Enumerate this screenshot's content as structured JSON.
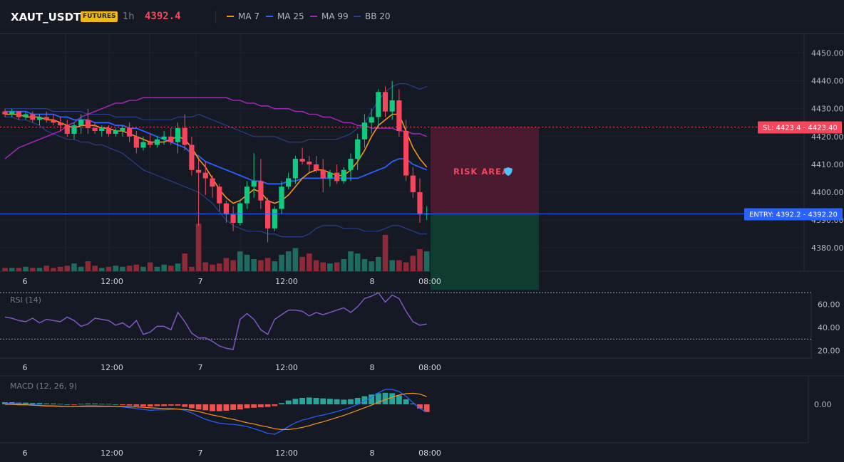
{
  "header": {
    "symbol": "XAUT_USDT",
    "badge": "FUTURES",
    "timeframe": "1h",
    "last_price": "4392.4",
    "legend": [
      {
        "label": "MA 7",
        "color": "#f7931a"
      },
      {
        "label": "MA 25",
        "color": "#2962ff"
      },
      {
        "label": "MA 99",
        "color": "#9c27b0"
      },
      {
        "label": "BB 20",
        "color": "#2a3f8a"
      }
    ]
  },
  "price_axis": [
    "4450.00",
    "4440.00",
    "4430.00",
    "4420.00",
    "4410.00",
    "4400.00",
    "4390.00",
    "4380.00"
  ],
  "time_axis": [
    "6",
    "12:00",
    "7",
    "12:00",
    "8",
    "08:00"
  ],
  "sl_label": "SL: 4423.4 - 4423.40",
  "entry_label": "ENTRY: 4392.2 - 4392.20",
  "risk_area_label": "RISK AREA",
  "rsi": {
    "title": "RSI (14)",
    "axis": [
      "60.00",
      "40.00",
      "20.00"
    ]
  },
  "macd": {
    "title": "MACD (12, 26, 9)",
    "axis": [
      "0.00"
    ]
  },
  "colors": {
    "bull": "#0ecb81",
    "bear": "#f6465d",
    "vol_bull": "#1e6b5f",
    "vol_bear": "#8e2a37",
    "rsi_line": "#7e57c2",
    "macd_line": "#2962ff",
    "signal_line": "#f7931a"
  },
  "chart_data": [
    {
      "type": "candlestick",
      "title": "",
      "ylim": [
        4371,
        4452
      ],
      "ohlc": [
        [
          4429,
          4430,
          4427,
          4428
        ],
        [
          4428,
          4430,
          4427,
          4429
        ],
        [
          4429,
          4429,
          4426,
          4427
        ],
        [
          4427,
          4429,
          4426,
          4428
        ],
        [
          4428,
          4429,
          4425,
          4426
        ],
        [
          4426,
          4428,
          4424,
          4427
        ],
        [
          4427,
          4429,
          4425,
          4426
        ],
        [
          4426,
          4428,
          4424,
          4425
        ],
        [
          4425,
          4427,
          4422,
          4424
        ],
        [
          4424,
          4426,
          4420,
          4421
        ],
        [
          4421,
          4425,
          4419,
          4424
        ],
        [
          4424,
          4428,
          4421,
          4426
        ],
        [
          4426,
          4430,
          4421,
          4423
        ],
        [
          4423,
          4425,
          4421,
          4422
        ],
        [
          4422,
          4424,
          4420,
          4423
        ],
        [
          4423,
          4424,
          4420,
          4421
        ],
        [
          4421,
          4423,
          4420,
          4422
        ],
        [
          4422,
          4424,
          4420,
          4423
        ],
        [
          4423,
          4425,
          4418,
          4420
        ],
        [
          4420,
          4422,
          4414,
          4416
        ],
        [
          4416,
          4420,
          4415,
          4418
        ],
        [
          4418,
          4421,
          4416,
          4417
        ],
        [
          4417,
          4420,
          4416,
          4419
        ],
        [
          4419,
          4422,
          4417,
          4420
        ],
        [
          4420,
          4423,
          4417,
          4418
        ],
        [
          4418,
          4425,
          4414,
          4423
        ],
        [
          4423,
          4428,
          4415,
          4417
        ],
        [
          4417,
          4420,
          4406,
          4408
        ],
        [
          4408,
          4412,
          4388,
          4407
        ],
        [
          4407,
          4411,
          4399,
          4405
        ],
        [
          4405,
          4406,
          4398,
          4402
        ],
        [
          4402,
          4403,
          4393,
          4396
        ],
        [
          4396,
          4397,
          4389,
          4392
        ],
        [
          4392,
          4395,
          4386,
          4389
        ],
        [
          4389,
          4397,
          4388,
          4396
        ],
        [
          4396,
          4404,
          4394,
          4402
        ],
        [
          4402,
          4414,
          4398,
          4404
        ],
        [
          4404,
          4412,
          4394,
          4397
        ],
        [
          4397,
          4398,
          4382,
          4387
        ],
        [
          4387,
          4395,
          4386,
          4394
        ],
        [
          4394,
          4404,
          4392,
          4402
        ],
        [
          4402,
          4407,
          4401,
          4405
        ],
        [
          4405,
          4413,
          4403,
          4412
        ],
        [
          4412,
          4416,
          4410,
          4411
        ],
        [
          4411,
          4413,
          4407,
          4410
        ],
        [
          4410,
          4413,
          4407,
          4408
        ],
        [
          4408,
          4412,
          4400,
          4405
        ],
        [
          4405,
          4408,
          4402,
          4407
        ],
        [
          4407,
          4410,
          4403,
          4404
        ],
        [
          4404,
          4409,
          4403,
          4408
        ],
        [
          4408,
          4414,
          4404,
          4412
        ],
        [
          4412,
          4421,
          4408,
          4419
        ],
        [
          4419,
          4428,
          4416,
          4425
        ],
        [
          4425,
          4430,
          4421,
          4427
        ],
        [
          4427,
          4437,
          4423,
          4436
        ],
        [
          4436,
          4438,
          4427,
          4429
        ],
        [
          4429,
          4440,
          4426,
          4433
        ],
        [
          4433,
          4437,
          4420,
          4422
        ],
        [
          4422,
          4426,
          4404,
          4406
        ],
        [
          4406,
          4409,
          4398,
          4400
        ],
        [
          4400,
          4405,
          4389,
          4392
        ],
        [
          4392,
          4395,
          4390,
          4392.4
        ]
      ],
      "ma7": [
        4428,
        4428,
        4428,
        4427,
        4427,
        4427,
        4426,
        4426,
        4425,
        4424,
        4423,
        4424,
        4424,
        4424,
        4423,
        4423,
        4422,
        4422,
        4421,
        4420,
        4419,
        4418,
        4418,
        4418,
        4419,
        4420,
        4419,
        4416,
        4412,
        4409,
        4405,
        4401,
        4398,
        4396,
        4397,
        4399,
        4401,
        4400,
        4397,
        4396,
        4397,
        4399,
        4402,
        4405,
        4407,
        4408,
        4408,
        4407,
        4406,
        4406,
        4408,
        4411,
        4415,
        4420,
        4424,
        4426,
        4428,
        4428,
        4422,
        4416,
        4412,
        4409
      ],
      "ma25": [
        4429,
        4429,
        4429,
        4429,
        4428,
        4428,
        4428,
        4428,
        4427,
        4427,
        4426,
        4426,
        4426,
        4425,
        4425,
        4425,
        4424,
        4424,
        4423,
        4423,
        4422,
        4421,
        4420,
        4419,
        4418,
        4417,
        4416,
        4414,
        4413,
        4411,
        4410,
        4409,
        4408,
        4407,
        4406,
        4405,
        4404,
        4404,
        4403,
        4403,
        4403,
        4404,
        4404,
        4405,
        4405,
        4405,
        4405,
        4405,
        4405,
        4405,
        4405,
        4405,
        4406,
        4407,
        4408,
        4409,
        4411,
        4412,
        4412,
        4410,
        4409,
        4408
      ],
      "ma99": [
        4412,
        4414,
        4416,
        4417,
        4418,
        4419,
        4420,
        4421,
        4422,
        4424,
        4425,
        4427,
        4428,
        4429,
        4430,
        4431,
        4432,
        4432,
        4433,
        4433,
        4434,
        4434,
        4434,
        4434,
        4434,
        4434,
        4434,
        4434,
        4434,
        4434,
        4434,
        4434,
        4434,
        4433,
        4433,
        4432,
        4432,
        4431,
        4431,
        4430,
        4430,
        4430,
        4429,
        4429,
        4428,
        4428,
        4427,
        4427,
        4426,
        4425,
        4425,
        4424,
        4424,
        4423,
        4423,
        4423,
        4423,
        4422,
        4422,
        4421,
        4421,
        4420
      ],
      "bb_upper": [
        4430,
        4430,
        4430,
        4430,
        4430,
        4430,
        4430,
        4429,
        4429,
        4429,
        4429,
        4429,
        4428,
        4428,
        4428,
        4428,
        4427,
        4427,
        4427,
        4427,
        4426,
        4426,
        4426,
        4426,
        4426,
        4427,
        4427,
        4427,
        4428,
        4427,
        4426,
        4425,
        4424,
        4423,
        4422,
        4421,
        4420,
        4420,
        4420,
        4420,
        4419,
        4418,
        4418,
        4418,
        4419,
        4419,
        4419,
        4419,
        4419,
        4420,
        4421,
        4423,
        4425,
        4429,
        4433,
        4436,
        4438,
        4439,
        4439,
        4438,
        4437,
        4438
      ],
      "bb_lower": [
        4427,
        4427,
        4426,
        4426,
        4425,
        4424,
        4422,
        4421,
        4420,
        4419,
        4419,
        4418,
        4418,
        4417,
        4417,
        4416,
        4415,
        4414,
        4412,
        4410,
        4408,
        4407,
        4406,
        4405,
        4404,
        4403,
        4402,
        4401,
        4400,
        4398,
        4396,
        4393,
        4390,
        4388,
        4387,
        4386,
        4386,
        4386,
        4385,
        4385,
        4384,
        4384,
        4384,
        4384,
        4385,
        4387,
        4388,
        4388,
        4388,
        4387,
        4387,
        4387,
        4386,
        4386,
        4386,
        4387,
        4388,
        4388,
        4387,
        4386,
        4385,
        4385
      ],
      "volume": [
        3,
        3,
        3,
        4,
        3,
        3,
        5,
        3,
        4,
        5,
        7,
        4,
        9,
        5,
        3,
        4,
        5,
        4,
        5,
        6,
        4,
        8,
        4,
        6,
        5,
        7,
        16,
        4,
        43,
        8,
        6,
        7,
        12,
        10,
        18,
        15,
        11,
        10,
        12,
        9,
        15,
        18,
        21,
        13,
        16,
        10,
        8,
        7,
        8,
        11,
        18,
        16,
        11,
        9,
        13,
        33,
        10,
        10,
        8,
        14,
        20,
        18
      ]
    },
    {
      "type": "line",
      "title": "RSI (14)",
      "ylim": [
        13,
        72
      ],
      "values": [
        49,
        48,
        46,
        45,
        48,
        44,
        47,
        46,
        45,
        49,
        46,
        41,
        43,
        48,
        47,
        46,
        42,
        44,
        40,
        46,
        34,
        36,
        41,
        41,
        38,
        53,
        45,
        35,
        31,
        31,
        28,
        24,
        22,
        21,
        47,
        52,
        47,
        38,
        34,
        47,
        51,
        55,
        55,
        54,
        50,
        53,
        51,
        53,
        55,
        57,
        53,
        58,
        65,
        67,
        70,
        62,
        68,
        65,
        54,
        45,
        42,
        43
      ]
    },
    {
      "type": "bar",
      "title": "MACD (12, 26, 9)",
      "ylim": [
        -8,
        6
      ],
      "histogram": [
        0.5,
        0.5,
        0.4,
        0.4,
        0.3,
        0.3,
        0.2,
        0.2,
        0.1,
        0.0,
        -0.1,
        0.1,
        0.2,
        0.2,
        0.1,
        0.1,
        0.0,
        -0.2,
        -0.3,
        -0.4,
        -0.5,
        -0.5,
        -0.4,
        -0.4,
        -0.3,
        -0.3,
        -0.6,
        -0.9,
        -1.2,
        -1.4,
        -1.6,
        -1.6,
        -1.5,
        -1.3,
        -1.2,
        -0.9,
        -0.8,
        -0.7,
        -0.6,
        -0.4,
        0.3,
        0.9,
        1.3,
        1.5,
        1.6,
        1.5,
        1.4,
        1.3,
        1.2,
        1.1,
        1.2,
        1.5,
        1.9,
        2.3,
        2.6,
        2.7,
        2.6,
        2.1,
        1.2,
        0.2,
        -1.0,
        -1.8
      ],
      "macd_line": [
        0.3,
        0.2,
        0.2,
        0.0,
        -0.1,
        -0.2,
        -0.3,
        -0.3,
        -0.4,
        -0.5,
        -0.5,
        -0.4,
        -0.3,
        -0.3,
        -0.4,
        -0.4,
        -0.5,
        -0.6,
        -0.8,
        -1.0,
        -1.2,
        -1.4,
        -1.3,
        -1.3,
        -1.2,
        -1.1,
        -1.4,
        -2.0,
        -2.8,
        -3.5,
        -4.0,
        -4.4,
        -4.6,
        -4.7,
        -4.9,
        -5.2,
        -5.7,
        -6.2,
        -6.8,
        -7.0,
        -6.2,
        -5.2,
        -4.3,
        -3.7,
        -3.3,
        -2.8,
        -2.5,
        -2.1,
        -1.7,
        -1.2,
        -0.7,
        0.0,
        0.8,
        1.6,
        2.7,
        3.5,
        3.5,
        3.0,
        1.9,
        0.4,
        -1.0,
        -1.8
      ],
      "signal_line": [
        0.0,
        0.0,
        -0.1,
        -0.1,
        -0.2,
        -0.3,
        -0.4,
        -0.4,
        -0.5,
        -0.5,
        -0.5,
        -0.5,
        -0.5,
        -0.5,
        -0.5,
        -0.5,
        -0.5,
        -0.5,
        -0.6,
        -0.6,
        -0.7,
        -0.8,
        -0.9,
        -1.0,
        -1.0,
        -1.1,
        -1.2,
        -1.4,
        -1.7,
        -2.1,
        -2.5,
        -2.8,
        -3.2,
        -3.5,
        -3.9,
        -4.3,
        -4.6,
        -5.0,
        -5.3,
        -5.7,
        -5.9,
        -5.9,
        -5.7,
        -5.4,
        -5.0,
        -4.5,
        -4.1,
        -3.6,
        -3.1,
        -2.6,
        -2.0,
        -1.4,
        -0.8,
        -0.2,
        0.5,
        1.1,
        1.7,
        2.2,
        2.5,
        2.6,
        2.4,
        1.8
      ]
    }
  ]
}
